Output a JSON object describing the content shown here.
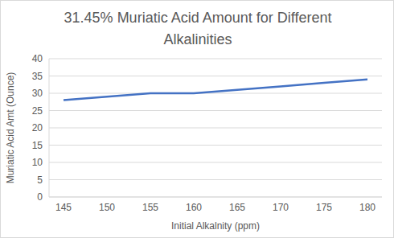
{
  "chart_data": {
    "type": "line",
    "title": "31.45% Muriatic Acid Amount for Different Alkalinities",
    "x_label": "Initial Alkalnity (ppm)",
    "y_label": "Muriatic Acid Amt (Ounce)",
    "categories": [
      "145",
      "150",
      "155",
      "160",
      "165",
      "170",
      "175",
      "180"
    ],
    "values": [
      28,
      29,
      30,
      30,
      31,
      32,
      33,
      34
    ],
    "color": "#4472c4",
    "ylim": [
      0,
      40
    ],
    "yticks": [
      0,
      5,
      10,
      15,
      20,
      25,
      30,
      35,
      40
    ],
    "grid": true
  }
}
